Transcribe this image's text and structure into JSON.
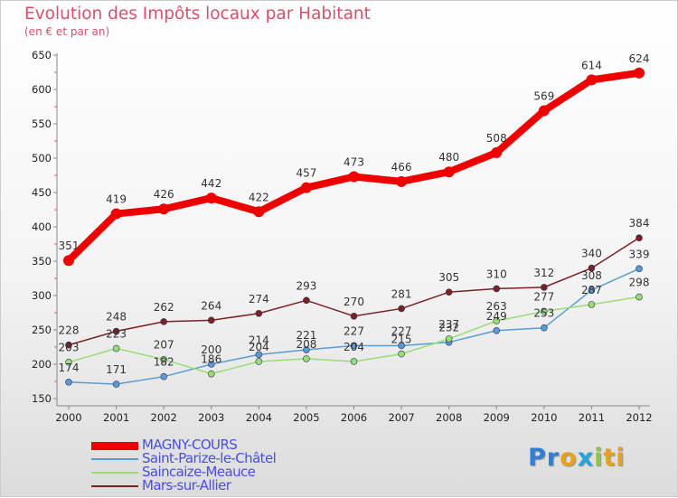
{
  "title": "Evolution des Impôts locaux par Habitant",
  "subtitle": "(en € et par an)",
  "logo": {
    "text": "Proxiti",
    "letter_colors": [
      "#2f7fd4",
      "#2f7fd4",
      "#e8a020",
      "#2aa3d9",
      "#8dc63f",
      "#e8a020",
      "#e8a020"
    ]
  },
  "chart_data": {
    "type": "line",
    "title": "Evolution des Impôts locaux par Habitant",
    "subtitle": "(en € et par an)",
    "categories": [
      "2000",
      "2001",
      "2002",
      "2003",
      "2004",
      "2005",
      "2006",
      "2007",
      "2008",
      "2009",
      "2010",
      "2011",
      "2012"
    ],
    "yticks": [
      "150",
      "200",
      "250",
      "300",
      "350",
      "400",
      "450",
      "500",
      "550",
      "600",
      "650"
    ],
    "ylim": [
      150,
      650
    ],
    "grid": false,
    "legend_position": "bottom-left",
    "series": [
      {
        "name": "MAGNY-COURS",
        "color": "#ee0000",
        "values": [
          351,
          419,
          426,
          442,
          422,
          457,
          473,
          466,
          480,
          508,
          569,
          614,
          624
        ],
        "labels": [
          "351",
          "419",
          "426",
          "442",
          "422",
          "457",
          "473",
          "466",
          "480",
          "508",
          "569",
          "614",
          "624"
        ],
        "style": "thick"
      },
      {
        "name": "Saint-Parize-le-Châtel",
        "color": "#5b9bd5",
        "values": [
          174,
          171,
          182,
          200,
          214,
          221,
          227,
          227,
          232,
          249,
          253,
          308,
          339
        ],
        "labels": [
          "174",
          "171",
          "182",
          "200",
          "214",
          "221",
          "227",
          "227",
          "232",
          "249",
          "253",
          "308",
          "339"
        ],
        "style": "thin"
      },
      {
        "name": "Saincaize-Meauce",
        "color": "#99dd77",
        "values": [
          203,
          223,
          207,
          186,
          204,
          208,
          204,
          215,
          237,
          263,
          277,
          287,
          298
        ],
        "labels": [
          "203",
          "223",
          "207",
          "186",
          "204",
          "208",
          "204",
          "215",
          "237",
          "263",
          "277",
          "287",
          "298"
        ],
        "style": "thin"
      },
      {
        "name": "Mars-sur-Allier",
        "color": "#7a2222",
        "values": [
          228,
          248,
          262,
          264,
          274,
          293,
          270,
          281,
          305,
          310,
          312,
          340,
          384
        ],
        "labels": [
          "228",
          "248",
          "262",
          "264",
          "274",
          "293",
          "270",
          "281",
          "305",
          "310",
          "312",
          "340",
          "384"
        ],
        "style": "thin"
      }
    ]
  }
}
